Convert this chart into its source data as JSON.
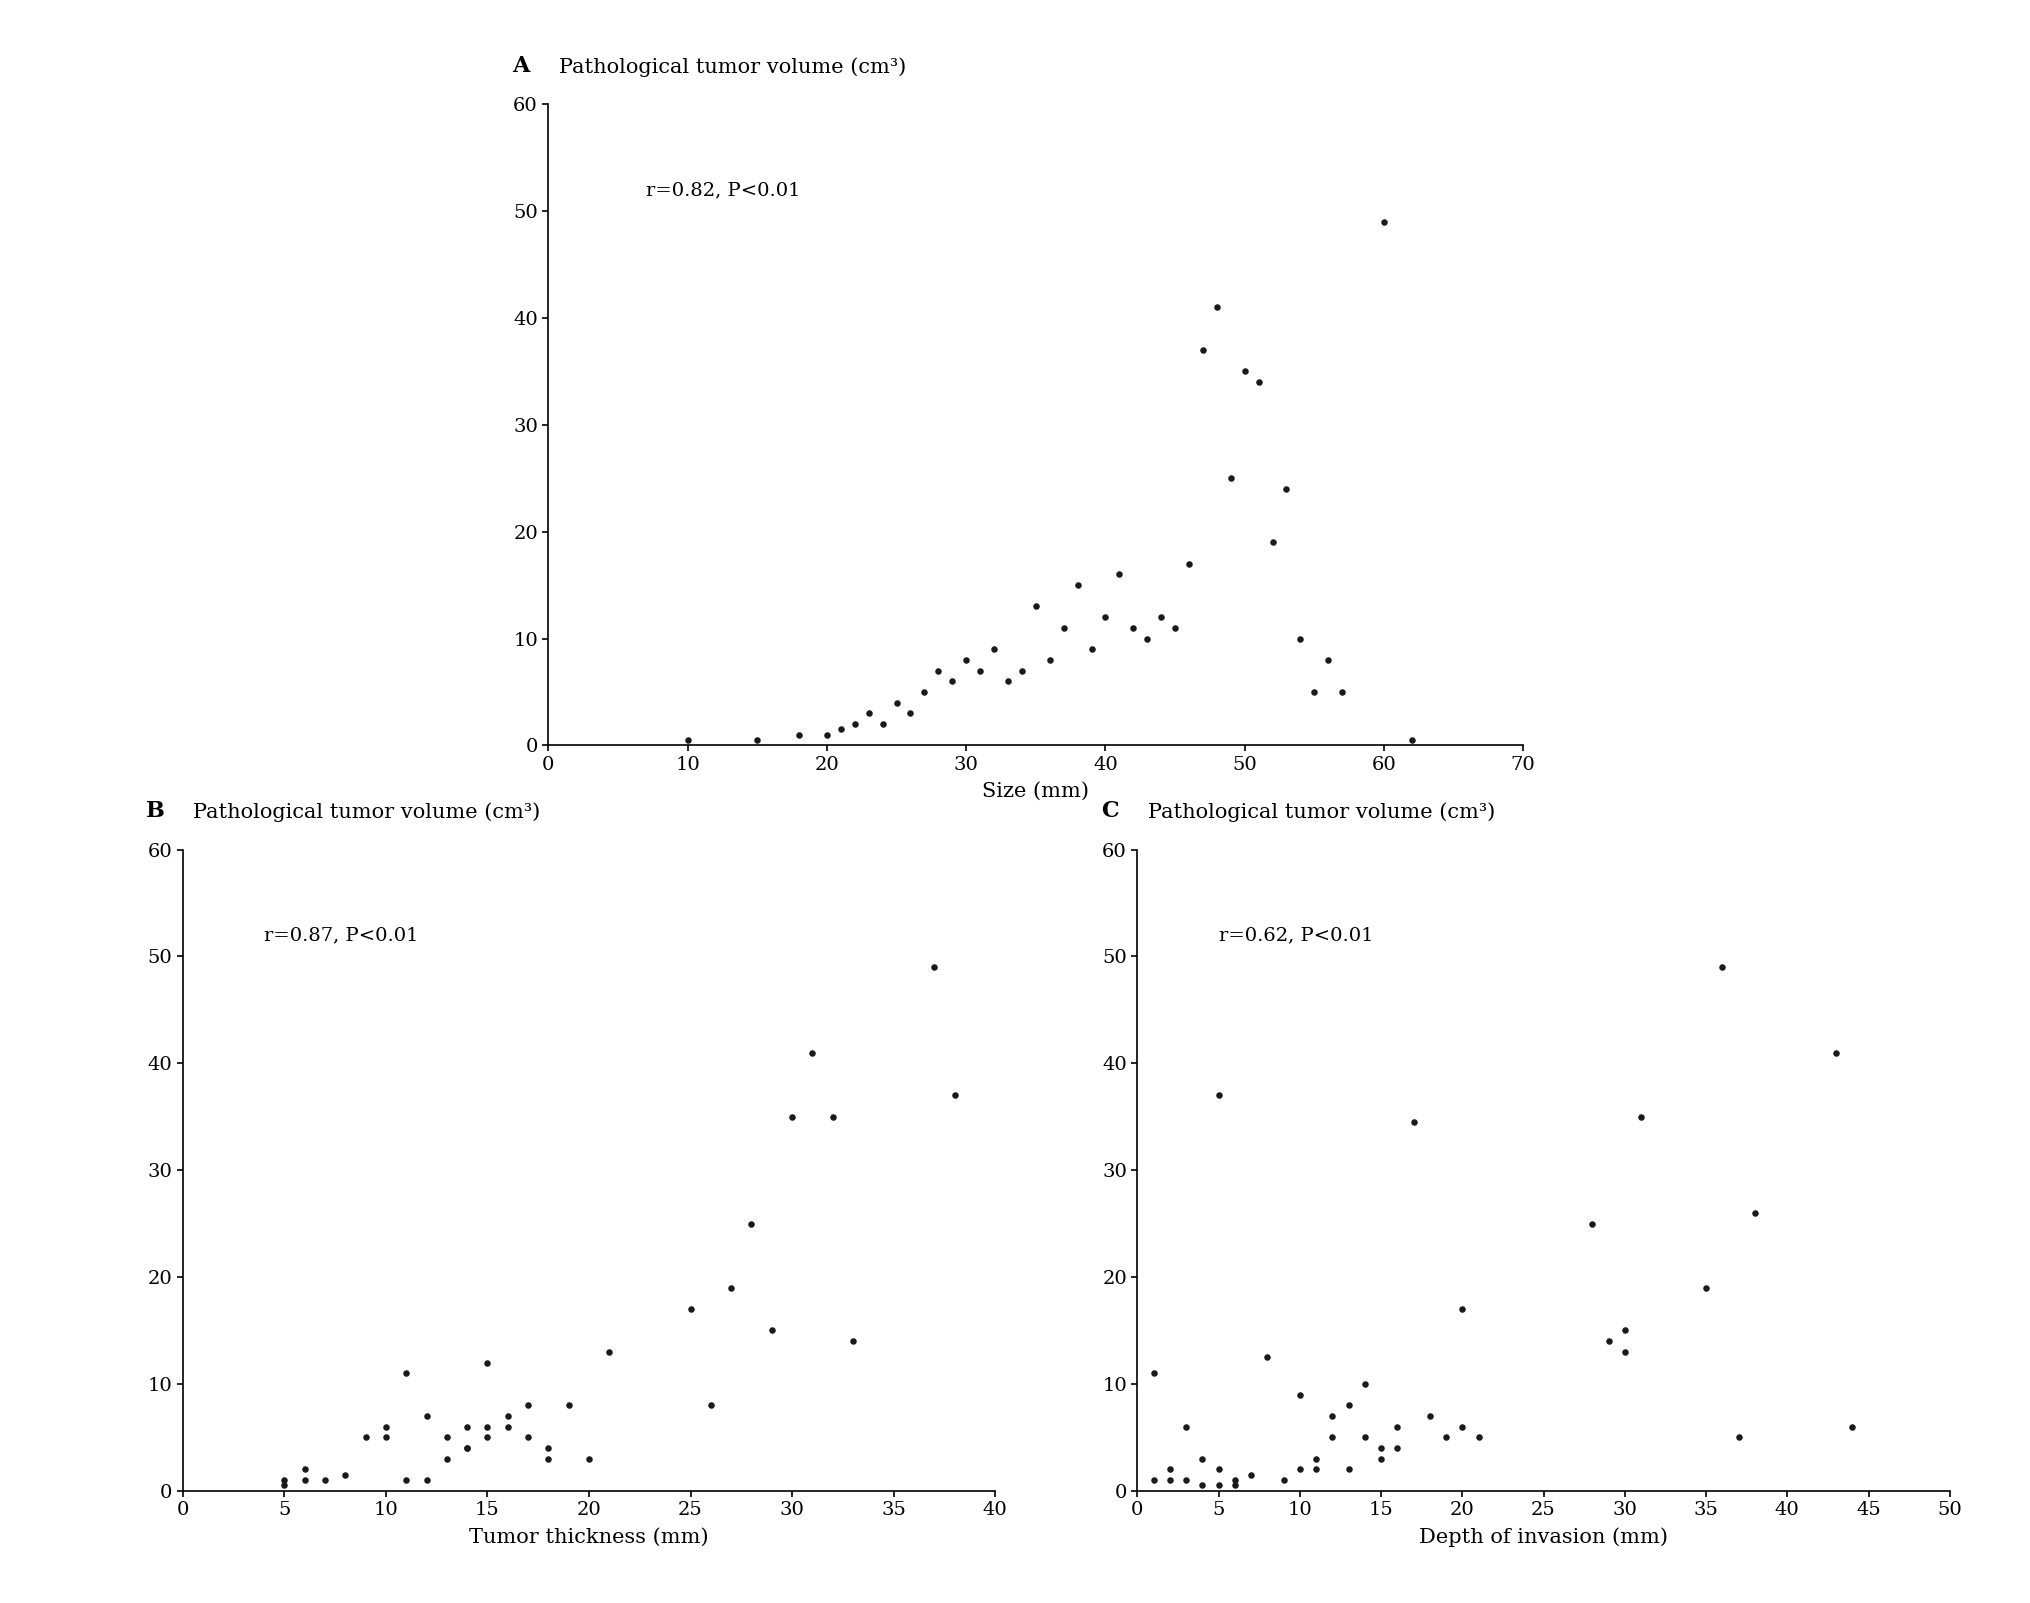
{
  "panel_A": {
    "title": "Pathological tumor volume (cm³)",
    "label": "A",
    "xlabel": "Size (mm)",
    "annotation": "r=0.82, P<0.01",
    "xlim": [
      0,
      70
    ],
    "ylim": [
      0,
      60
    ],
    "xticks": [
      0,
      10,
      20,
      30,
      40,
      50,
      60,
      70
    ],
    "yticks": [
      0,
      10,
      20,
      30,
      40,
      50,
      60
    ],
    "x": [
      10,
      15,
      18,
      20,
      21,
      22,
      23,
      24,
      25,
      26,
      27,
      28,
      29,
      30,
      31,
      32,
      33,
      34,
      35,
      36,
      37,
      38,
      39,
      40,
      41,
      42,
      43,
      44,
      45,
      46,
      47,
      48,
      49,
      50,
      51,
      52,
      53,
      54,
      55,
      56,
      57,
      60,
      62
    ],
    "y": [
      0.5,
      0.5,
      1,
      1,
      1.5,
      2,
      3,
      2,
      4,
      3,
      5,
      7,
      6,
      8,
      7,
      9,
      6,
      7,
      13,
      8,
      11,
      15,
      9,
      12,
      16,
      11,
      10,
      12,
      11,
      17,
      37,
      41,
      25,
      35,
      34,
      19,
      24,
      10,
      5,
      8,
      5,
      49,
      0.5
    ]
  },
  "panel_B": {
    "title": "Pathological tumor volume (cm³)",
    "label": "B",
    "xlabel": "Tumor thickness (mm)",
    "annotation": "r=0.87, P<0.01",
    "xlim": [
      0,
      40
    ],
    "ylim": [
      0,
      60
    ],
    "xticks": [
      0,
      5,
      10,
      15,
      20,
      25,
      30,
      35,
      40
    ],
    "yticks": [
      0,
      10,
      20,
      30,
      40,
      50,
      60
    ],
    "x": [
      5,
      5,
      6,
      6,
      7,
      8,
      9,
      10,
      10,
      11,
      11,
      12,
      12,
      13,
      13,
      14,
      14,
      14,
      15,
      15,
      15,
      16,
      16,
      17,
      17,
      18,
      18,
      19,
      20,
      21,
      25,
      26,
      27,
      28,
      29,
      30,
      31,
      32,
      33,
      37,
      38
    ],
    "y": [
      1,
      0.5,
      2,
      1,
      1,
      1.5,
      5,
      6,
      5,
      11,
      1,
      7,
      1,
      3,
      5,
      4,
      6,
      4,
      6,
      5,
      12,
      7,
      6,
      8,
      5,
      4,
      3,
      8,
      3,
      13,
      17,
      8,
      19,
      25,
      15,
      35,
      41,
      35,
      14,
      49,
      37
    ]
  },
  "panel_C": {
    "title": "Pathological tumor volume (cm³)",
    "label": "C",
    "xlabel": "Depth of invasion (mm)",
    "annotation": "r=0.62, P<0.01",
    "xlim": [
      0,
      50
    ],
    "ylim": [
      0,
      60
    ],
    "xticks": [
      0,
      5,
      10,
      15,
      20,
      25,
      30,
      35,
      40,
      45,
      50
    ],
    "yticks": [
      0,
      10,
      20,
      30,
      40,
      50,
      60
    ],
    "x": [
      1,
      1,
      2,
      2,
      3,
      3,
      4,
      4,
      5,
      5,
      5,
      6,
      6,
      7,
      8,
      9,
      10,
      10,
      11,
      11,
      12,
      12,
      13,
      13,
      14,
      14,
      15,
      15,
      16,
      16,
      17,
      18,
      19,
      20,
      20,
      21,
      28,
      29,
      30,
      30,
      31,
      35,
      36,
      37,
      38,
      43,
      44
    ],
    "y": [
      11,
      1,
      2,
      1,
      6,
      1,
      0.5,
      3,
      0.5,
      2,
      37,
      1,
      0.5,
      1.5,
      12.5,
      1,
      2,
      9,
      3,
      2,
      7,
      5,
      8,
      2,
      5,
      10,
      4,
      3,
      6,
      4,
      34.5,
      7,
      5,
      6,
      17,
      5,
      25,
      14,
      13,
      15,
      35,
      19,
      49,
      5,
      26,
      41,
      6
    ]
  },
  "background_color": "#ffffff",
  "dot_color": "#1a1a1a",
  "dot_size": 22,
  "font_family": "serif",
  "font_size_tick": 14,
  "font_size_xlabel": 15,
  "font_size_title": 15,
  "font_size_annotation": 14,
  "font_size_panel_label": 16
}
